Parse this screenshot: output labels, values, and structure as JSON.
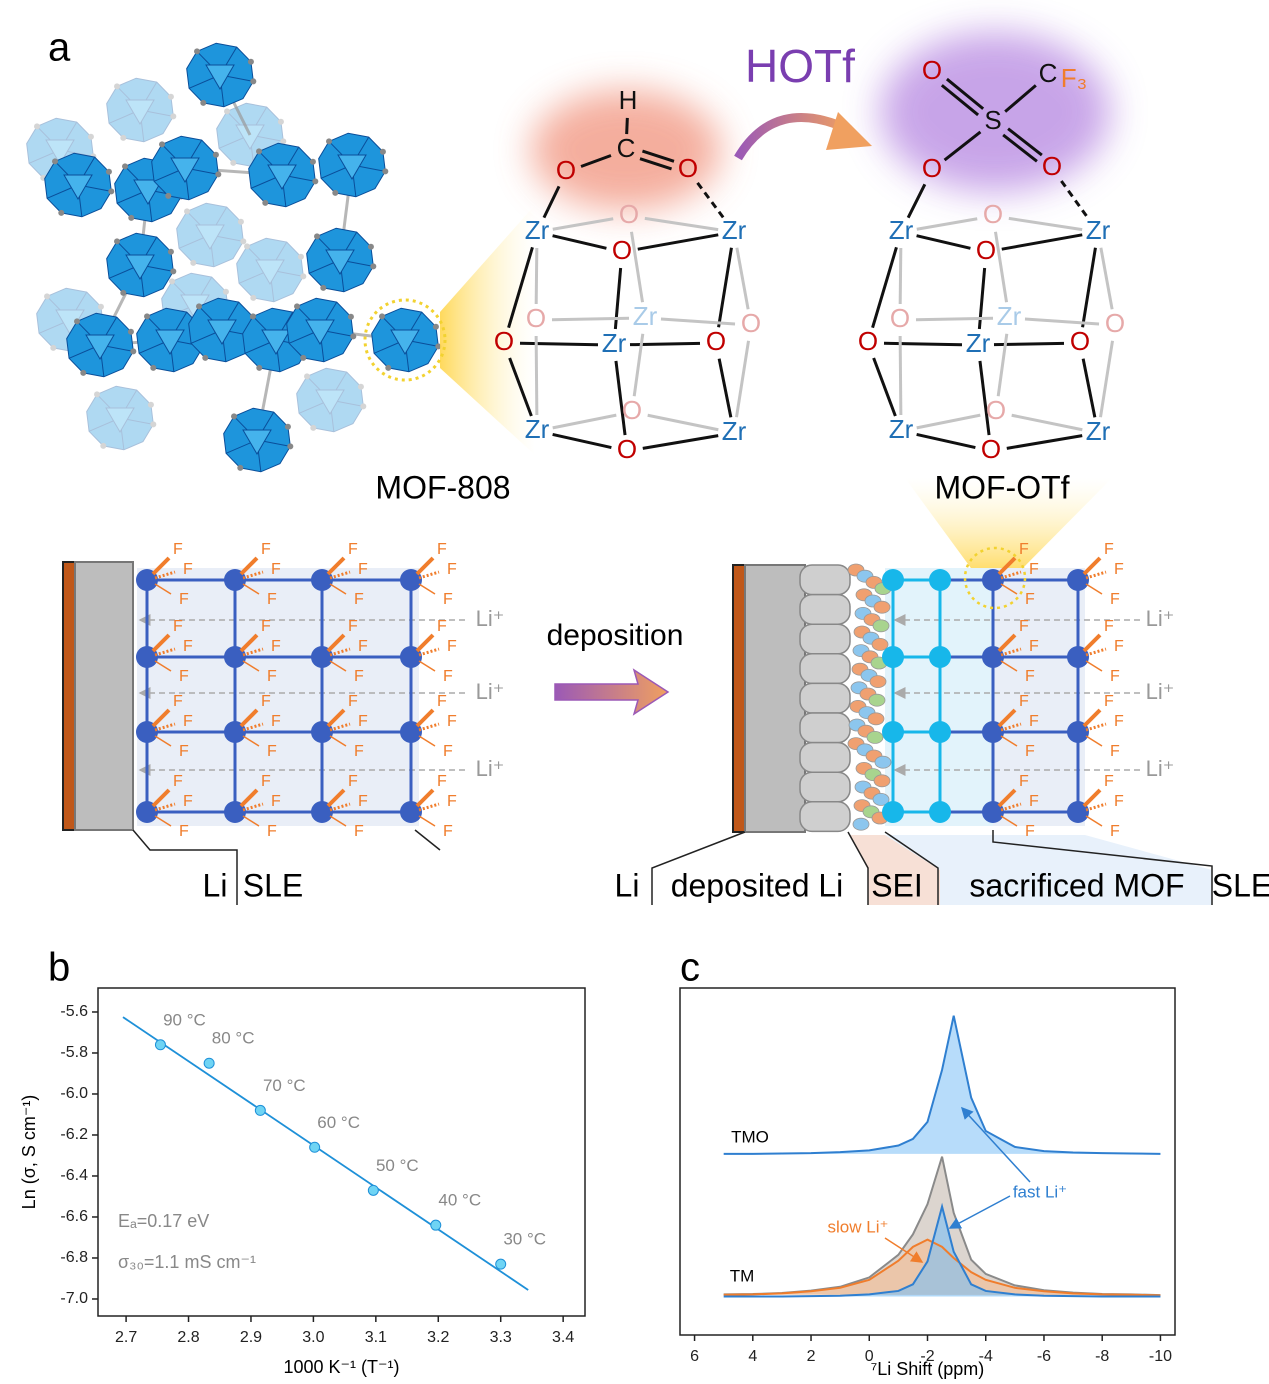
{
  "panel_a": {
    "label": "a",
    "reagent": "HOTf",
    "left_name": "MOF-808",
    "right_name": "MOF-OTf",
    "left_cluster": [
      "H",
      "C",
      "O",
      "O",
      "Zr",
      "Zr",
      "O",
      "O",
      "Zr",
      "O",
      "O",
      "Zr",
      "O",
      "O",
      "O",
      "Zr",
      "Zr",
      "O"
    ],
    "right_cluster": [
      "O",
      "S",
      "O",
      "O",
      "C",
      "F₃",
      "Zr",
      "Zr",
      "O",
      "O",
      "Zr",
      "O",
      "O",
      "Zr",
      "O",
      "O",
      "O",
      "Zr",
      "Zr",
      "O"
    ],
    "fluorine": "F",
    "li_ion": "Li⁺",
    "process": "deposition",
    "left_layers": [
      "Li",
      "SLE"
    ],
    "right_layers": [
      "Li",
      "deposited Li",
      "SEI",
      "sacrificed MOF",
      "SLE"
    ]
  },
  "chart_data": [
    {
      "type": "scatter",
      "label": "b",
      "x": [
        2.755,
        2.833,
        2.915,
        3.002,
        3.096,
        3.196,
        3.3
      ],
      "y": [
        -5.76,
        -5.85,
        -6.08,
        -6.26,
        -6.47,
        -6.64,
        -6.83
      ],
      "point_labels": [
        "90 °C",
        "80 °C",
        "70 °C",
        "60 °C",
        "50 °C",
        "40 °C",
        "30 °C"
      ],
      "fit": {
        "x": [
          2.695,
          3.344
        ],
        "y": [
          -5.625,
          -6.956
        ]
      },
      "color": "#1e90d8",
      "marker_color": "#6fd4f4",
      "annotations": [
        "Eₐ=0.17 eV",
        "σ₃₀=1.1 mS cm⁻¹"
      ],
      "xlabel": "1000 K⁻¹ (T⁻¹)",
      "ylabel": "Ln (σ, S cm⁻¹)",
      "xlim": [
        2.655,
        3.435
      ],
      "ylim": [
        -7.083,
        -5.483
      ],
      "xticks": [
        2.7,
        2.8,
        2.9,
        {
          "value": 3,
          "label": "3.0"
        },
        3.1,
        3.2,
        3.3,
        3.4
      ],
      "yticks": [
        {
          "value": -7,
          "label": "-7.0"
        },
        -6.8,
        -6.6,
        -6.4,
        -6.2,
        {
          "value": -6,
          "label": "-6.0"
        },
        -5.8,
        -5.6
      ]
    },
    {
      "type": "line",
      "label": "c",
      "x": [
        5,
        4,
        3,
        2,
        1,
        0,
        -1,
        -1.5,
        -2,
        -2.5,
        -2.9,
        -3.5,
        -4,
        -5,
        -6,
        -7,
        -8,
        -9,
        -10
      ],
      "groups": [
        {
          "name": "TMO",
          "series": [
            {
              "color": "#2f7fd0",
              "fill": "#7cc0f5",
              "values": [
                0.522,
                0.522,
                0.523,
                0.524,
                0.527,
                0.532,
                0.546,
                0.565,
                0.614,
                0.764,
                0.92,
                0.684,
                0.588,
                0.542,
                0.53,
                0.526,
                0.524,
                0.523,
                0.522
              ]
            }
          ]
        },
        {
          "name": "TM",
          "series": [
            {
              "color": "#8a8a8a",
              "fill": "#bfb3a8",
              "values": [
                0.117,
                0.118,
                0.121,
                0.128,
                0.139,
                0.166,
                0.231,
                0.29,
                0.377,
                0.514,
                0.352,
                0.217,
                0.176,
                0.143,
                0.129,
                0.122,
                0.118,
                0.117,
                0.115
              ]
            },
            {
              "name": "slow Li⁺",
              "color": "#f07d2c",
              "fill": "#f8b98c",
              "values": [
                0.116,
                0.117,
                0.12,
                0.126,
                0.136,
                0.159,
                0.214,
                0.254,
                0.275,
                0.254,
                0.222,
                0.181,
                0.159,
                0.136,
                0.126,
                0.12,
                0.117,
                0.116,
                0.114
              ]
            },
            {
              "name": "fast Li⁺",
              "color": "#2f7fd0",
              "fill": "#7cc0f5",
              "values": [
                0.111,
                0.111,
                0.111,
                0.112,
                0.113,
                0.117,
                0.127,
                0.146,
                0.212,
                0.37,
                0.24,
                0.146,
                0.127,
                0.117,
                0.113,
                0.112,
                0.111,
                0.111,
                0.111
              ]
            }
          ]
        }
      ],
      "xlabel": "⁷Li Shift (ppm)",
      "xlim": [
        6.5,
        -10.5
      ],
      "ylim": [
        0,
        1
      ],
      "xticks": [
        6,
        4,
        2,
        0,
        -2,
        -4,
        -6,
        -8,
        -10
      ]
    }
  ]
}
